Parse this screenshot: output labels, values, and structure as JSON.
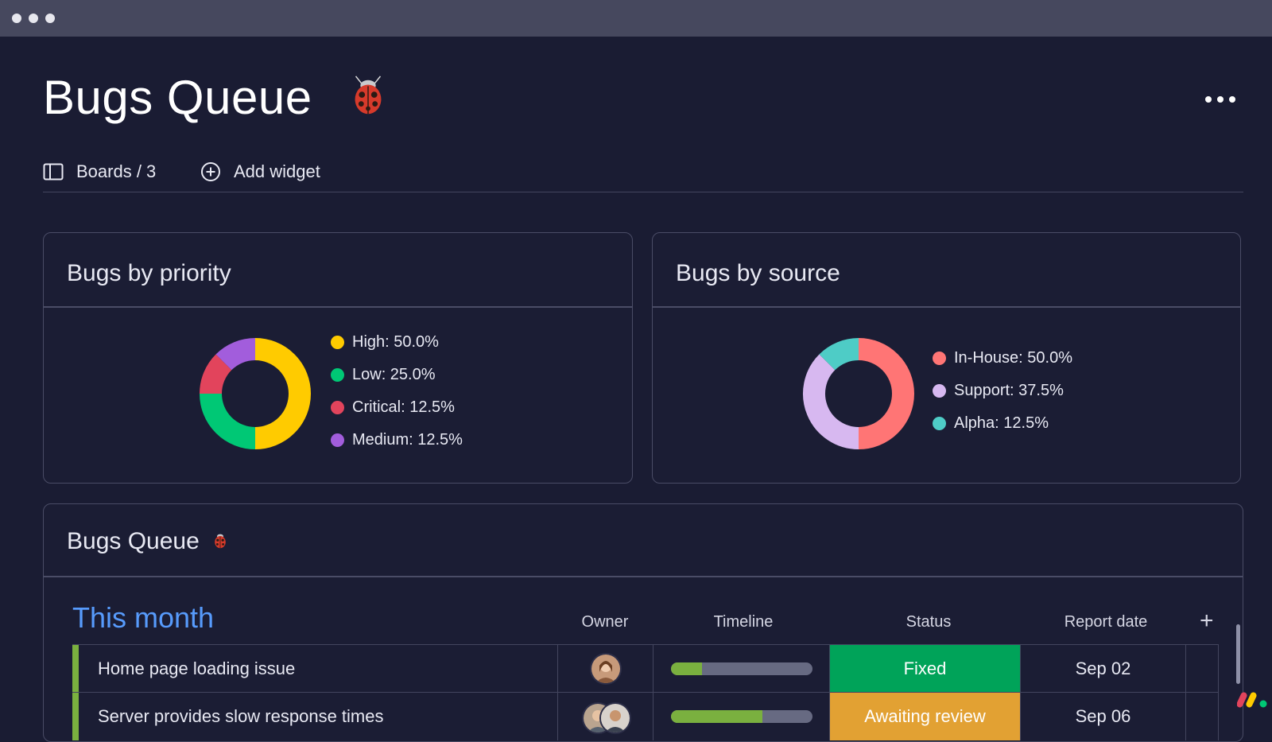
{
  "window": {
    "title_dots": 3
  },
  "dashboard": {
    "title": "Bugs Queue",
    "boards_label": "Boards / 3",
    "add_widget_label": "Add widget"
  },
  "widgets": {
    "priority": {
      "title": "Bugs by priority",
      "legend": [
        {
          "label": "High: 50.0%",
          "color": "#ffcb00"
        },
        {
          "label": "Low: 25.0%",
          "color": "#00c875"
        },
        {
          "label": "Critical: 12.5%",
          "color": "#e2445c"
        },
        {
          "label": "Medium: 12.5%",
          "color": "#a25ddc"
        }
      ]
    },
    "source": {
      "title": "Bugs by source",
      "legend": [
        {
          "label": "In-House: 50.0%",
          "color": "#ff7575"
        },
        {
          "label": "Support: 37.5%",
          "color": "#d7b8f0"
        },
        {
          "label": "Alpha: 12.5%",
          "color": "#4eccc6"
        }
      ]
    }
  },
  "chart_data": [
    {
      "type": "pie",
      "title": "Bugs by priority",
      "categories": [
        "High",
        "Low",
        "Critical",
        "Medium"
      ],
      "values": [
        50.0,
        25.0,
        12.5,
        12.5
      ],
      "colors": [
        "#ffcb00",
        "#00c875",
        "#e2445c",
        "#a25ddc"
      ],
      "donut": true,
      "legend": "right"
    },
    {
      "type": "pie",
      "title": "Bugs by source",
      "categories": [
        "In-House",
        "Support",
        "Alpha"
      ],
      "values": [
        50.0,
        37.5,
        12.5
      ],
      "colors": [
        "#ff7575",
        "#d7b8f0",
        "#4eccc6"
      ],
      "donut": true,
      "legend": "right"
    }
  ],
  "board": {
    "title": "Bugs Queue",
    "group_title": "This month",
    "columns": {
      "owner": "Owner",
      "timeline": "Timeline",
      "status": "Status",
      "report_date": "Report date",
      "add": "+"
    },
    "rows": [
      {
        "name": "Home page loading issue",
        "timeline_progress": 0.22,
        "status": "Fixed",
        "status_color": "#00a359",
        "report_date": "Sep 02"
      },
      {
        "name": "Server provides slow response times",
        "timeline_progress": 0.65,
        "status": "Awaiting review",
        "status_color": "#e2a133",
        "report_date": "Sep 06"
      }
    ]
  }
}
